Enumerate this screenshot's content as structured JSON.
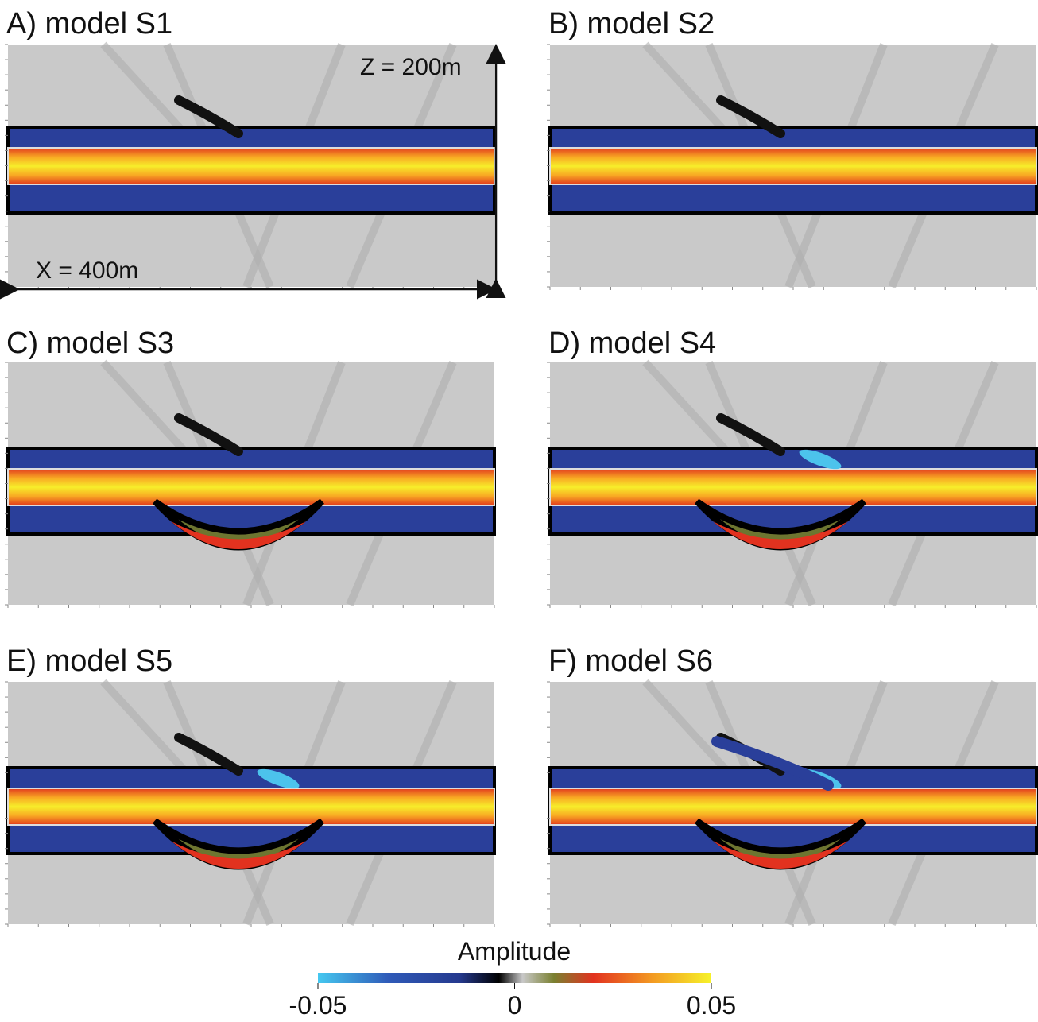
{
  "panels": [
    {
      "title": "A) model S1",
      "annotations": [
        "Z = 200m",
        "X = 400m"
      ]
    },
    {
      "title": "B) model S2"
    },
    {
      "title": "C) model S3"
    },
    {
      "title": "D) model S4"
    },
    {
      "title": "E) model S5"
    },
    {
      "title": "F) model S6"
    }
  ],
  "colorbar": {
    "label": "Amplitude",
    "lim": [
      -0.05,
      0.05
    ],
    "ticks": [
      -0.05,
      0,
      0.05
    ]
  }
}
